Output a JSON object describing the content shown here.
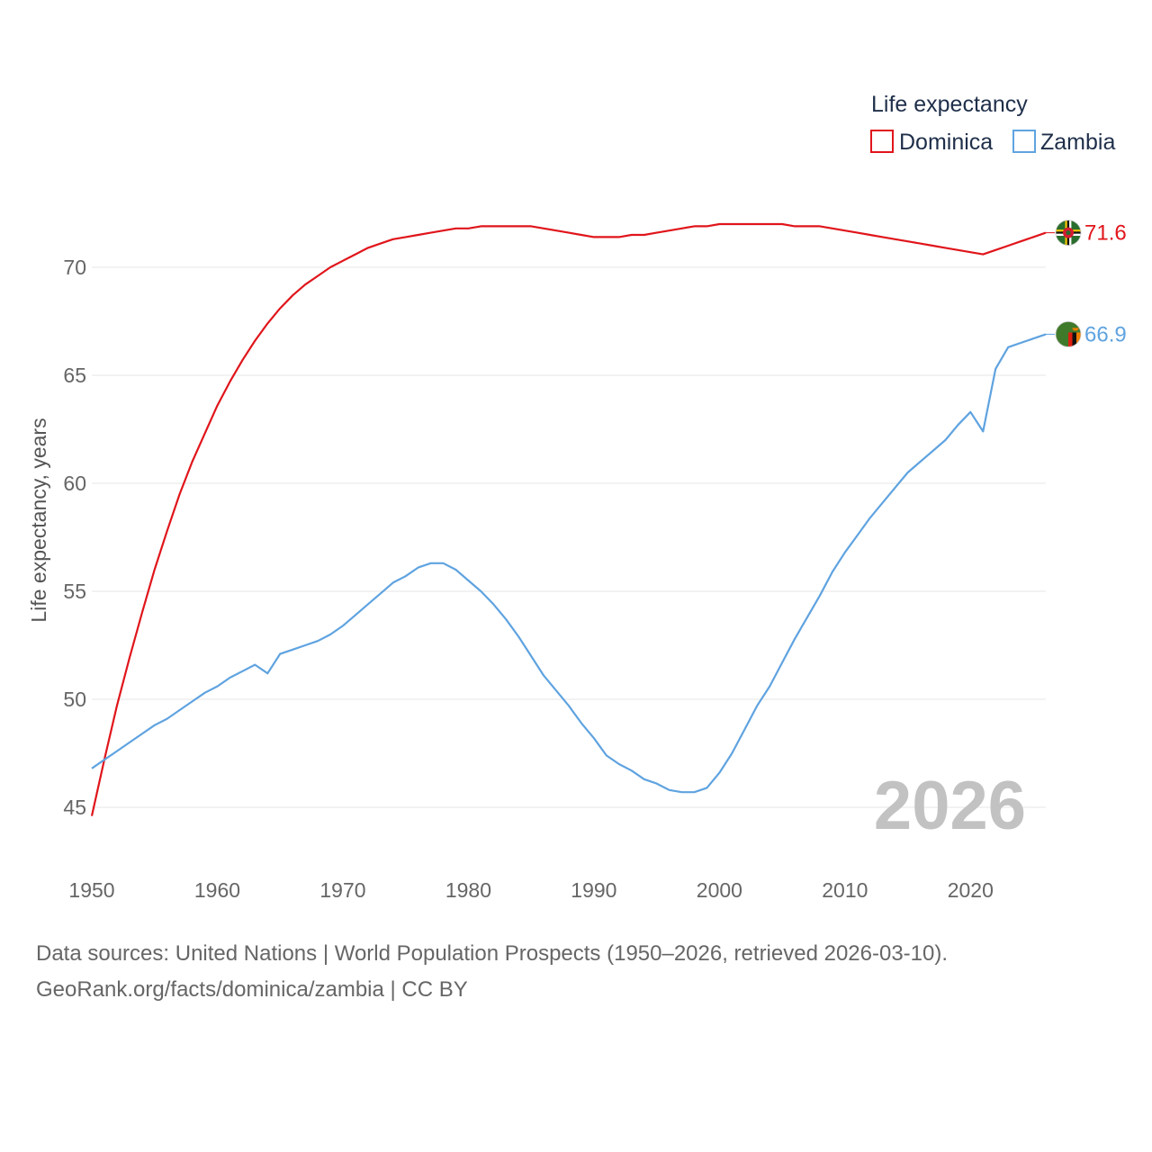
{
  "chart_data": {
    "type": "line",
    "ylabel": "Life expectancy, years",
    "xlabel": "",
    "xlim": [
      1950,
      2026
    ],
    "ylim": [
      43,
      73
    ],
    "x_ticks": [
      1950,
      1960,
      1970,
      1980,
      1990,
      2000,
      2010,
      2020
    ],
    "y_ticks": [
      45,
      50,
      55,
      60,
      65,
      70
    ],
    "grid": true,
    "legend": {
      "title": "Life expectancy",
      "position": "top-right"
    },
    "year_label": "2026",
    "series": [
      {
        "name": "Dominica",
        "color": "#e0151b",
        "end_label": "71.6",
        "flag": "dominica-flag",
        "x": [
          1950,
          1951,
          1952,
          1953,
          1954,
          1955,
          1956,
          1957,
          1958,
          1959,
          1960,
          1961,
          1962,
          1963,
          1964,
          1965,
          1966,
          1967,
          1968,
          1969,
          1970,
          1971,
          1972,
          1973,
          1974,
          1975,
          1976,
          1977,
          1978,
          1979,
          1980,
          1981,
          1982,
          1983,
          1984,
          1985,
          1986,
          1987,
          1988,
          1989,
          1990,
          1991,
          1992,
          1993,
          1994,
          1995,
          1996,
          1997,
          1998,
          1999,
          2000,
          2001,
          2002,
          2003,
          2004,
          2005,
          2006,
          2007,
          2008,
          2009,
          2010,
          2011,
          2012,
          2013,
          2014,
          2015,
          2016,
          2017,
          2018,
          2019,
          2020,
          2021,
          2022,
          2023,
          2024,
          2025,
          2026
        ],
        "values": [
          44.6,
          47.2,
          49.7,
          51.9,
          54.0,
          56.0,
          57.8,
          59.5,
          61.0,
          62.3,
          63.6,
          64.7,
          65.7,
          66.6,
          67.4,
          68.1,
          68.7,
          69.2,
          69.6,
          70.0,
          70.3,
          70.6,
          70.9,
          71.1,
          71.3,
          71.4,
          71.5,
          71.6,
          71.7,
          71.8,
          71.8,
          71.9,
          71.9,
          71.9,
          71.9,
          71.9,
          71.8,
          71.7,
          71.6,
          71.5,
          71.4,
          71.4,
          71.4,
          71.5,
          71.5,
          71.6,
          71.7,
          71.8,
          71.9,
          71.9,
          72.0,
          72.0,
          72.0,
          72.0,
          72.0,
          72.0,
          71.9,
          71.9,
          71.9,
          71.8,
          71.7,
          71.6,
          71.5,
          71.4,
          71.3,
          71.2,
          71.1,
          71.0,
          70.9,
          70.8,
          70.7,
          70.6,
          70.8,
          71.0,
          71.2,
          71.4,
          71.6
        ]
      },
      {
        "name": "Zambia",
        "color": "#5fa3e0",
        "end_label": "66.9",
        "flag": "zambia-flag",
        "x": [
          1950,
          1951,
          1952,
          1953,
          1954,
          1955,
          1956,
          1957,
          1958,
          1959,
          1960,
          1961,
          1962,
          1963,
          1964,
          1965,
          1966,
          1967,
          1968,
          1969,
          1970,
          1971,
          1972,
          1973,
          1974,
          1975,
          1976,
          1977,
          1978,
          1979,
          1980,
          1981,
          1982,
          1983,
          1984,
          1985,
          1986,
          1987,
          1988,
          1989,
          1990,
          1991,
          1992,
          1993,
          1994,
          1995,
          1996,
          1997,
          1998,
          1999,
          2000,
          2001,
          2002,
          2003,
          2004,
          2005,
          2006,
          2007,
          2008,
          2009,
          2010,
          2011,
          2012,
          2013,
          2014,
          2015,
          2016,
          2017,
          2018,
          2019,
          2020,
          2021,
          2022,
          2023,
          2024,
          2025,
          2026
        ],
        "values": [
          46.8,
          47.2,
          47.6,
          48.0,
          48.4,
          48.8,
          49.1,
          49.5,
          49.9,
          50.3,
          50.6,
          51.0,
          51.3,
          51.6,
          51.2,
          52.1,
          52.3,
          52.5,
          52.7,
          53.0,
          53.4,
          53.9,
          54.4,
          54.9,
          55.4,
          55.7,
          56.1,
          56.3,
          56.3,
          56.0,
          55.5,
          55.0,
          54.4,
          53.7,
          52.9,
          52.0,
          51.1,
          50.4,
          49.7,
          48.9,
          48.2,
          47.4,
          47.0,
          46.7,
          46.3,
          46.1,
          45.8,
          45.7,
          45.7,
          45.9,
          46.6,
          47.5,
          48.6,
          49.7,
          50.6,
          51.7,
          52.8,
          53.8,
          54.8,
          55.9,
          56.8,
          57.6,
          58.4,
          59.1,
          59.8,
          60.5,
          61.0,
          61.5,
          62.0,
          62.7,
          63.3,
          62.4,
          65.3,
          66.3,
          66.5,
          66.7,
          66.9
        ]
      }
    ]
  },
  "source": {
    "line1": "Data sources: United Nations | World Population Prospects (1950–2026, retrieved 2026-03-10).",
    "line2": "GeoRank.org/facts/dominica/zambia | CC BY"
  }
}
